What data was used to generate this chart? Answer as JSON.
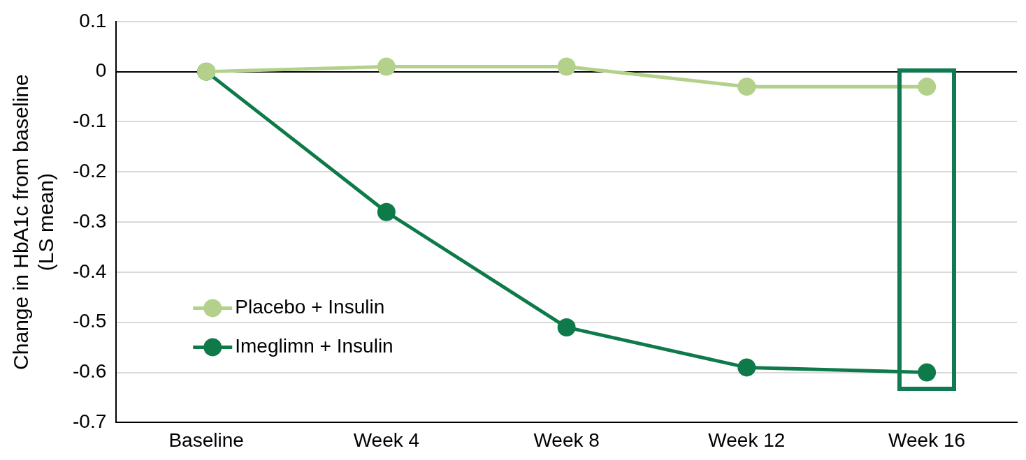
{
  "chart_data": {
    "type": "line",
    "ylabel": "Change in HbA1c from baseline (LS mean)",
    "categories": [
      "Baseline",
      "Week 4",
      "Week 8",
      "Week 12",
      "Week 16"
    ],
    "series": [
      {
        "name": "Placebo + Insulin",
        "color": "#b3d18a",
        "values": [
          0,
          0.01,
          0.01,
          -0.03,
          -0.03
        ]
      },
      {
        "name": "Imeglimn + Insulin",
        "color": "#0e7a4a",
        "values": [
          0,
          -0.28,
          -0.51,
          -0.59,
          -0.6
        ]
      }
    ],
    "ylim": [
      -0.7,
      0.1
    ],
    "yticks": [
      0.1,
      0,
      -0.1,
      -0.2,
      -0.3,
      -0.4,
      -0.5,
      -0.6,
      -0.7
    ],
    "grid": "y",
    "legend": "bottom left",
    "marker": "circle",
    "line_style": "solid"
  }
}
